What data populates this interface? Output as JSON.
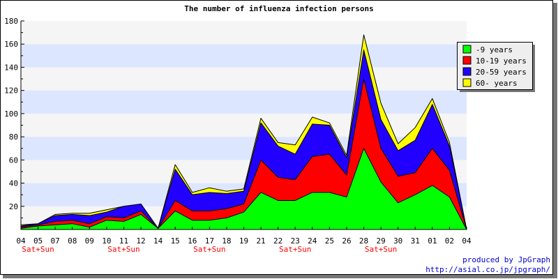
{
  "chart_data": {
    "type": "area",
    "stacked": true,
    "title": "The number of influenza infection persons",
    "xlabel": "",
    "ylabel": "",
    "ylim": [
      0,
      180
    ],
    "yticks": [
      20,
      40,
      60,
      80,
      100,
      120,
      140,
      160,
      180
    ],
    "grid": "horizontal bands",
    "legend_position": "top-right",
    "categories": [
      "04",
      "05",
      "07",
      "08",
      "09",
      "10",
      "11",
      "12",
      "14",
      "15",
      "16",
      "17",
      "18",
      "19",
      "21",
      "22",
      "23",
      "24",
      "25",
      "26",
      "28",
      "29",
      "30",
      "31",
      "01",
      "02",
      "04"
    ],
    "weekend_markers": [
      {
        "category": "05",
        "label": "Sat+Sun"
      },
      {
        "category": "11",
        "label": "Sat+Sun"
      },
      {
        "category": "17",
        "label": "Sat+Sun"
      },
      {
        "category": "23",
        "label": "Sat+Sun"
      },
      {
        "category": "29",
        "label": "Sat+Sun"
      }
    ],
    "series": [
      {
        "name": "-9 years",
        "color": "#00ff00",
        "values": [
          1,
          3,
          4,
          5,
          2,
          8,
          7,
          13,
          1,
          16,
          8,
          8,
          10,
          15,
          32,
          25,
          25,
          32,
          32,
          28,
          70,
          41,
          23,
          30,
          38,
          28,
          0
        ]
      },
      {
        "name": "10-19 years",
        "color": "#ff0000",
        "values": [
          1,
          1,
          3,
          3,
          3,
          3,
          3,
          3,
          0,
          9,
          8,
          8,
          8,
          7,
          28,
          20,
          18,
          31,
          33,
          19,
          60,
          29,
          23,
          19,
          32,
          23,
          0
        ]
      },
      {
        "name": "20-59 years",
        "color": "#2200ff",
        "values": [
          1,
          1,
          5,
          5,
          7,
          4,
          10,
          6,
          0,
          27,
          14,
          16,
          13,
          11,
          32,
          27,
          22,
          28,
          25,
          15,
          25,
          25,
          22,
          28,
          38,
          21,
          0
        ]
      },
      {
        "name": "60- years",
        "color": "#ffff00",
        "values": [
          1,
          0,
          1,
          1,
          2,
          2,
          0,
          0,
          0,
          4,
          2,
          4,
          2,
          2,
          4,
          3,
          8,
          6,
          2,
          2,
          13,
          14,
          6,
          11,
          5,
          3,
          0
        ]
      }
    ]
  },
  "footer": {
    "credit": "produced by JpGraph",
    "url": "http://asial.co.jp/jpgraph/"
  },
  "colors": {
    "band_light": "#f5f5f5",
    "band_blue": "#dde6ff",
    "weekend_label": "#ff0000",
    "footer_text": "#0000cc"
  }
}
